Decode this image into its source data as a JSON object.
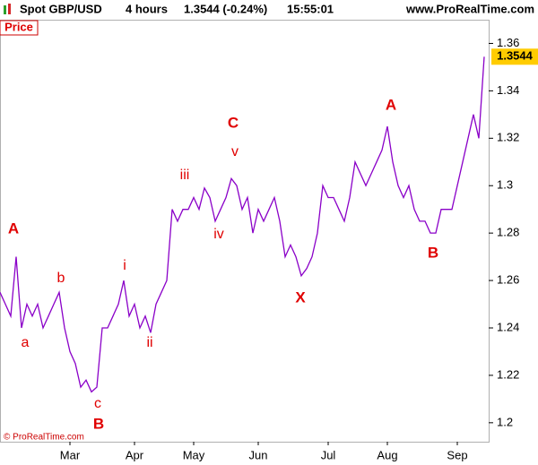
{
  "chart_data": {
    "type": "line",
    "title": "Spot GBP/USD",
    "timeframe": "4 hours",
    "quote": "1.3544 (-0.24%)",
    "time": "15:55:01",
    "source": "www.ProRealTime.com",
    "panel_label": "Price",
    "copyright": "© ProRealTime.com",
    "categories": [
      null,
      null,
      null,
      null,
      null,
      null,
      null,
      null,
      null,
      null,
      null,
      null,
      null,
      "Mar",
      null,
      null,
      null,
      null,
      null,
      null,
      null,
      null,
      null,
      null,
      null,
      "Apr",
      null,
      null,
      null,
      null,
      null,
      null,
      null,
      null,
      null,
      null,
      "May",
      null,
      null,
      null,
      null,
      null,
      null,
      null,
      null,
      null,
      null,
      null,
      "Jun",
      null,
      null,
      null,
      null,
      null,
      null,
      null,
      null,
      null,
      null,
      null,
      null,
      "Jul",
      null,
      null,
      null,
      null,
      null,
      null,
      null,
      null,
      null,
      null,
      "Aug",
      null,
      null,
      null,
      null,
      null,
      null,
      null,
      null,
      null,
      null,
      null,
      null,
      "Sep",
      null,
      null,
      null,
      null,
      null
    ],
    "series": [
      {
        "name": "GBP/USD",
        "color": "#8a00c8",
        "values": [
          1.255,
          1.25,
          1.245,
          1.27,
          1.24,
          1.25,
          1.245,
          1.25,
          1.24,
          1.245,
          1.25,
          1.255,
          1.24,
          1.23,
          1.225,
          1.215,
          1.218,
          1.213,
          1.215,
          1.24,
          1.24,
          1.245,
          1.25,
          1.26,
          1.245,
          1.25,
          1.24,
          1.245,
          1.238,
          1.25,
          1.255,
          1.26,
          1.29,
          1.285,
          1.29,
          1.29,
          1.295,
          1.29,
          1.299,
          1.295,
          1.285,
          1.29,
          1.295,
          1.303,
          1.3,
          1.29,
          1.295,
          1.28,
          1.29,
          1.285,
          1.29,
          1.295,
          1.285,
          1.27,
          1.275,
          1.27,
          1.262,
          1.265,
          1.27,
          1.28,
          1.3,
          1.295,
          1.295,
          1.29,
          1.285,
          1.295,
          1.31,
          1.305,
          1.3,
          1.305,
          1.31,
          1.315,
          1.325,
          1.31,
          1.3,
          1.295,
          1.3,
          1.29,
          1.285,
          1.285,
          1.28,
          1.28,
          1.29,
          1.29,
          1.29,
          1.3,
          1.31,
          1.32,
          1.33,
          1.32,
          1.3544
        ]
      }
    ],
    "ylim": [
      1.192,
      1.37
    ],
    "yticks": [
      1.2,
      1.22,
      1.24,
      1.26,
      1.28,
      1.3,
      1.32,
      1.34,
      1.36
    ],
    "annotations": [
      {
        "text": "A",
        "size": "large"
      },
      {
        "text": "a",
        "size": "small"
      },
      {
        "text": "b",
        "size": "small"
      },
      {
        "text": "c",
        "size": "small"
      },
      {
        "text": "B",
        "size": "large"
      },
      {
        "text": "i",
        "size": "small"
      },
      {
        "text": "ii",
        "size": "small"
      },
      {
        "text": "iii",
        "size": "small"
      },
      {
        "text": "iv",
        "size": "small"
      },
      {
        "text": "v",
        "size": "small"
      },
      {
        "text": "C",
        "size": "large"
      },
      {
        "text": "X",
        "size": "large"
      },
      {
        "text": "A",
        "size": "large"
      },
      {
        "text": "B",
        "size": "large"
      }
    ]
  }
}
